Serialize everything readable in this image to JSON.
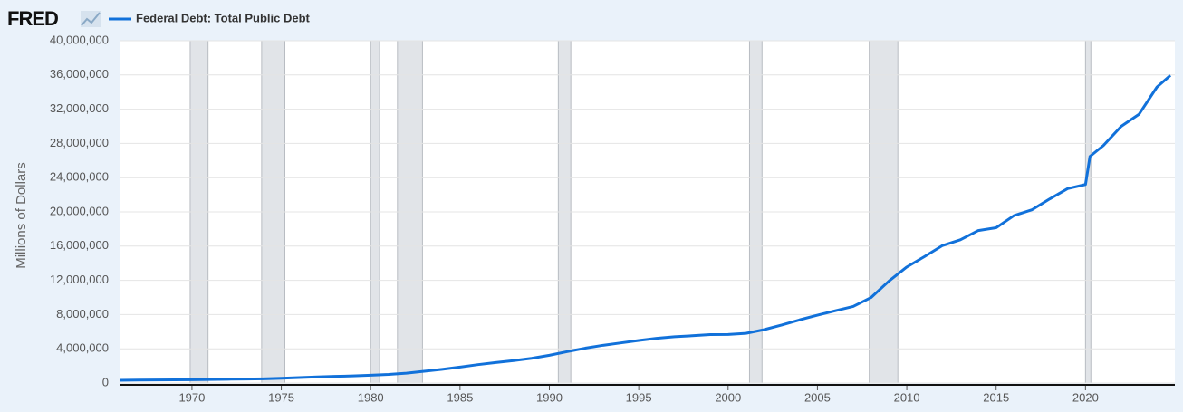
{
  "header": {
    "logo": "FRED"
  },
  "chart_data": {
    "type": "line",
    "ylabel": "Millions of Dollars",
    "x": [
      1966,
      1967,
      1968,
      1969,
      1970,
      1971,
      1972,
      1973,
      1974,
      1975,
      1976,
      1977,
      1978,
      1979,
      1980,
      1981,
      1982,
      1983,
      1984,
      1985,
      1986,
      1987,
      1988,
      1989,
      1990,
      1991,
      1992,
      1993,
      1994,
      1995,
      1996,
      1997,
      1998,
      1999,
      2000,
      2001,
      2002,
      2003,
      2004,
      2005,
      2006,
      2007,
      2008,
      2009,
      2010,
      2011,
      2012,
      2013,
      2014,
      2015,
      2016,
      2017,
      2018,
      2019,
      2020,
      2020.25,
      2021,
      2022,
      2023,
      2024,
      2024.75
    ],
    "series": [
      {
        "name": "Federal Debt: Total Public Debt",
        "color": "#1171da",
        "values": [
          320000,
          340000,
          360000,
          365000,
          380000,
          410000,
          440000,
          465000,
          490000,
          560000,
          640000,
          710000,
          780000,
          830000,
          910000,
          1000000,
          1150000,
          1380000,
          1600000,
          1860000,
          2150000,
          2390000,
          2620000,
          2880000,
          3240000,
          3670000,
          4070000,
          4410000,
          4690000,
          4970000,
          5220000,
          5410000,
          5530000,
          5660000,
          5670000,
          5810000,
          6230000,
          6780000,
          7380000,
          7930000,
          8450000,
          8950000,
          9990000,
          11910000,
          13560000,
          14790000,
          16070000,
          16740000,
          17820000,
          18150000,
          19570000,
          20240000,
          21520000,
          22720000,
          23200000,
          26480000,
          27750000,
          30000000,
          31420000,
          34590000,
          35950000
        ]
      }
    ],
    "recessions": [
      [
        1969.9,
        1970.9
      ],
      [
        1973.9,
        1975.2
      ],
      [
        1980.0,
        1980.5
      ],
      [
        1981.5,
        1982.9
      ],
      [
        1990.5,
        1991.2
      ],
      [
        2001.2,
        2001.9
      ],
      [
        2007.9,
        2009.5
      ],
      [
        2020.0,
        2020.3
      ]
    ],
    "xlim": [
      1966,
      2025
    ],
    "xticks": [
      1970,
      1975,
      1980,
      1985,
      1990,
      1995,
      2000,
      2005,
      2010,
      2015,
      2020
    ],
    "ylim": [
      0,
      40000000
    ],
    "yticks": [
      0,
      {
        "value": 4000000,
        "label": "4,000,000"
      },
      {
        "value": 8000000,
        "label": "8,000,000"
      },
      {
        "value": 12000000,
        "label": "12,000,000"
      },
      {
        "value": 16000000,
        "label": "16,000,000"
      },
      {
        "value": 20000000,
        "label": "20,000,000"
      },
      {
        "value": 24000000,
        "label": "24,000,000"
      },
      {
        "value": 28000000,
        "label": "28,000,000"
      },
      {
        "value": 32000000,
        "label": "32,000,000"
      },
      {
        "value": 36000000,
        "label": "36,000,000"
      },
      {
        "value": 40000000,
        "label": "40,000,000"
      }
    ],
    "grid": true
  }
}
